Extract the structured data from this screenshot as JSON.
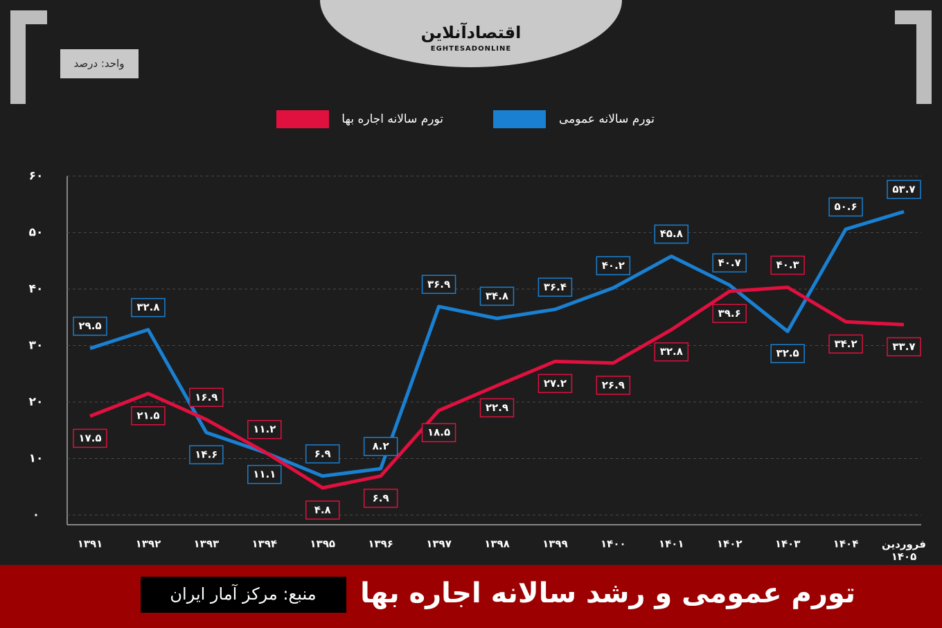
{
  "header": {
    "logo": "اقتصادآنلاین",
    "logo_latin": "EGHTESADONLINE",
    "unit": "واحد: درصد"
  },
  "chart_data": {
    "type": "line",
    "categories": [
      "۱۳۹۱",
      "۱۳۹۲",
      "۱۳۹۳",
      "۱۳۹۴",
      "۱۳۹۵",
      "۱۳۹۶",
      "۱۳۹۷",
      "۱۳۹۸",
      "۱۳۹۹",
      "۱۴۰۰",
      "۱۴۰۱",
      "۱۴۰۲",
      "۱۴۰۳",
      "۱۴۰۴",
      "فروردین ۱۴۰۵"
    ],
    "series": [
      {
        "name": "تورم سالانه عمومی",
        "color": "#1a80d2",
        "values": [
          29.5,
          32.8,
          14.6,
          11.1,
          6.9,
          8.2,
          36.9,
          34.8,
          36.4,
          40.2,
          45.8,
          40.7,
          32.5,
          50.6,
          53.7
        ],
        "value_labels": [
          "۲۹.۵",
          "۳۲.۸",
          "۱۴.۶",
          "۱۱.۱",
          "۶.۹",
          "۸.۲",
          "۳۶.۹",
          "۳۴.۸",
          "۳۶.۴",
          "۴۰.۲",
          "۴۵.۸",
          "۴۰.۷",
          "۳۲.۵",
          "۵۰.۶",
          "۵۳.۷"
        ]
      },
      {
        "name": "تورم سالانه اجاره بها",
        "color": "#e0103f",
        "values": [
          17.5,
          21.5,
          16.9,
          11.2,
          4.8,
          6.9,
          18.5,
          22.9,
          27.2,
          26.9,
          32.8,
          39.6,
          40.3,
          34.2,
          33.7
        ],
        "value_labels": [
          "۱۷.۵",
          "۲۱.۵",
          "۱۶.۹",
          "۱۱.۲",
          "۴.۸",
          "۶.۹",
          "۱۸.۵",
          "۲۲.۹",
          "۲۷.۲",
          "۲۶.۹",
          "۳۲.۸",
          "۳۹.۶",
          "۴۰.۳",
          "۳۴.۲",
          "۳۳.۷"
        ]
      }
    ],
    "ylim": [
      0,
      60
    ],
    "yticks": [
      {
        "value": 0,
        "label": "۰"
      },
      {
        "value": 10,
        "label": "۱۰"
      },
      {
        "value": 20,
        "label": "۲۰"
      },
      {
        "value": 30,
        "label": "۳۰"
      },
      {
        "value": 40,
        "label": "۴۰"
      },
      {
        "value": 50,
        "label": "۵۰"
      },
      {
        "value": 60,
        "label": "۶۰"
      }
    ],
    "grid": true
  },
  "footer": {
    "title": "تورم عمومی و رشد سالانه اجاره بها",
    "source": "منبع: مرکز آمار ایران"
  }
}
